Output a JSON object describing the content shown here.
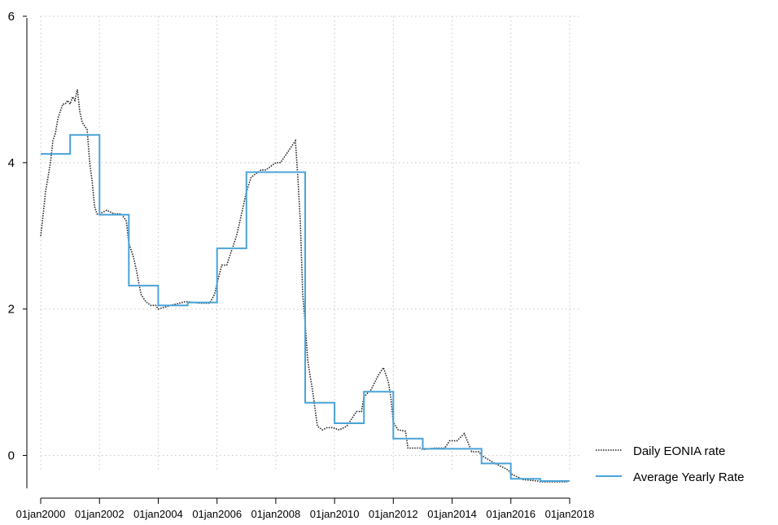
{
  "chart_data": {
    "type": "line",
    "title": "",
    "xlabel": "",
    "ylabel": "",
    "xlim": [
      "2000-01-01",
      "2018-01-01"
    ],
    "ylim": [
      -0.45,
      6
    ],
    "y_ticks": [
      0,
      2,
      4,
      6
    ],
    "x_ticks": [
      "2000-01-01",
      "2002-01-01",
      "2004-01-01",
      "2006-01-01",
      "2008-01-01",
      "2010-01-01",
      "2012-01-01",
      "2014-01-01",
      "2016-01-01",
      "2018-01-01"
    ],
    "x_tick_labels": [
      "01jan2000",
      "01jan2002",
      "01jan2004",
      "01jan2006",
      "01jan2008",
      "01jan2010",
      "01jan2012",
      "01jan2014",
      "01jan2016",
      "01jan2018"
    ],
    "grid": true,
    "legend_position": "bottom-right",
    "colors": {
      "daily": "#222222",
      "average": "#4aa3d8",
      "grid": "#c8c8c8"
    },
    "series": [
      {
        "name": "Daily EONIA rate",
        "style": "dotted",
        "x": [
          "2000-01-01",
          "2000-02-01",
          "2000-03-01",
          "2000-04-01",
          "2000-05-01",
          "2000-06-01",
          "2000-07-01",
          "2000-08-01",
          "2000-09-01",
          "2000-10-01",
          "2000-11-01",
          "2000-12-01",
          "2001-01-01",
          "2001-02-01",
          "2001-03-01",
          "2001-04-01",
          "2001-05-01",
          "2001-06-01",
          "2001-07-01",
          "2001-08-01",
          "2001-09-01",
          "2001-10-01",
          "2001-11-01",
          "2001-12-01",
          "2002-01-01",
          "2002-04-01",
          "2002-07-01",
          "2002-10-01",
          "2002-12-01",
          "2003-01-01",
          "2003-03-01",
          "2003-04-01",
          "2003-06-01",
          "2003-08-01",
          "2003-10-01",
          "2003-12-01",
          "2004-01-01",
          "2004-06-01",
          "2004-12-01",
          "2005-01-01",
          "2005-06-01",
          "2005-10-01",
          "2005-12-01",
          "2006-01-01",
          "2006-03-01",
          "2006-05-01",
          "2006-07-01",
          "2006-09-01",
          "2006-11-01",
          "2007-01-01",
          "2007-03-01",
          "2007-05-01",
          "2007-07-01",
          "2007-09-01",
          "2007-11-01",
          "2008-01-01",
          "2008-03-01",
          "2008-05-01",
          "2008-07-01",
          "2008-09-01",
          "2008-10-01",
          "2008-11-01",
          "2008-12-01",
          "2009-01-01",
          "2009-02-01",
          "2009-03-01",
          "2009-04-01",
          "2009-06-01",
          "2009-08-01",
          "2009-10-01",
          "2009-12-01",
          "2010-01-01",
          "2010-03-01",
          "2010-06-01",
          "2010-08-01",
          "2010-10-01",
          "2010-12-01",
          "2011-01-01",
          "2011-04-01",
          "2011-07-01",
          "2011-09-01",
          "2011-11-01",
          "2011-12-01",
          "2012-01-01",
          "2012-03-01",
          "2012-06-01",
          "2012-07-01",
          "2012-10-01",
          "2012-12-01",
          "2013-01-01",
          "2013-06-01",
          "2013-10-01",
          "2013-12-01",
          "2014-01-01",
          "2014-03-01",
          "2014-06-01",
          "2014-09-01",
          "2014-12-01",
          "2015-01-01",
          "2015-06-01",
          "2015-12-01",
          "2016-01-01",
          "2016-06-01",
          "2016-12-01",
          "2017-01-01",
          "2017-06-01",
          "2017-12-01"
        ],
        "values": [
          3.0,
          3.3,
          3.6,
          3.8,
          4.0,
          4.3,
          4.4,
          4.6,
          4.7,
          4.8,
          4.8,
          4.85,
          4.8,
          4.9,
          4.85,
          5.0,
          4.7,
          4.55,
          4.5,
          4.45,
          4.0,
          3.75,
          3.4,
          3.3,
          3.3,
          3.35,
          3.3,
          3.3,
          3.2,
          2.9,
          2.7,
          2.55,
          2.2,
          2.1,
          2.05,
          2.05,
          2.0,
          2.05,
          2.1,
          2.1,
          2.08,
          2.08,
          2.2,
          2.35,
          2.6,
          2.6,
          2.8,
          3.0,
          3.3,
          3.6,
          3.8,
          3.85,
          3.9,
          3.9,
          3.95,
          4.0,
          4.0,
          4.1,
          4.2,
          4.3,
          3.8,
          3.2,
          2.2,
          1.8,
          1.3,
          1.1,
          0.9,
          0.4,
          0.35,
          0.38,
          0.38,
          0.37,
          0.35,
          0.4,
          0.5,
          0.6,
          0.6,
          0.8,
          0.9,
          1.1,
          1.2,
          1.0,
          0.8,
          0.45,
          0.35,
          0.33,
          0.1,
          0.1,
          0.1,
          0.08,
          0.1,
          0.1,
          0.2,
          0.2,
          0.2,
          0.3,
          0.05,
          0.05,
          0.0,
          -0.1,
          -0.2,
          -0.25,
          -0.33,
          -0.35,
          -0.36,
          -0.36,
          -0.36
        ]
      },
      {
        "name": "Average Yearly Rate",
        "style": "step",
        "years": [
          2000,
          2001,
          2002,
          2003,
          2004,
          2005,
          2006,
          2007,
          2008,
          2009,
          2010,
          2011,
          2012,
          2013,
          2014,
          2015,
          2016,
          2017
        ],
        "values": [
          4.12,
          4.38,
          3.29,
          2.32,
          2.05,
          2.09,
          2.83,
          3.87,
          3.87,
          0.72,
          0.44,
          0.87,
          0.23,
          0.09,
          0.09,
          -0.11,
          -0.32,
          -0.35
        ]
      }
    ]
  }
}
